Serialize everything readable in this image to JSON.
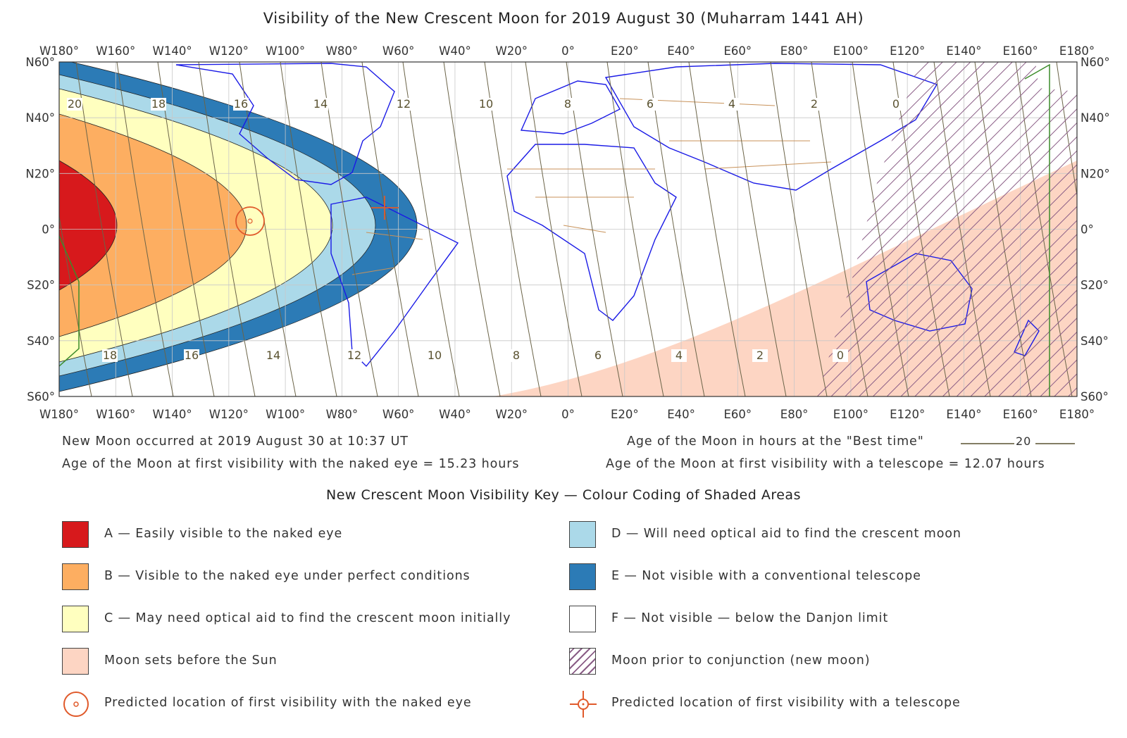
{
  "title": "Visibility of the New Crescent Moon for 2019 August 30 (Muharram 1441 AH)",
  "map": {
    "longitude_labels": [
      "W180°",
      "W160°",
      "W140°",
      "W120°",
      "W100°",
      "W80°",
      "W60°",
      "W40°",
      "W20°",
      "0°",
      "E20°",
      "E40°",
      "E60°",
      "E80°",
      "E100°",
      "E120°",
      "E140°",
      "E160°",
      "E180°"
    ],
    "longitude_values": [
      -180,
      -160,
      -140,
      -120,
      -100,
      -80,
      -60,
      -40,
      -20,
      0,
      20,
      40,
      60,
      80,
      100,
      120,
      140,
      160,
      180
    ],
    "latitude_labels": [
      "N60°",
      "N40°",
      "N20°",
      "0°",
      "S20°",
      "S40°",
      "S60°"
    ],
    "latitude_values": [
      60,
      40,
      20,
      0,
      -20,
      -40,
      -60
    ],
    "lon_range": [
      -180,
      180
    ],
    "lat_range": [
      -60,
      60
    ],
    "grid": true,
    "age_contour_labels_north": [
      "20",
      "18",
      "16",
      "14",
      "12",
      "10",
      "8",
      "6",
      "4",
      "2",
      "0"
    ],
    "age_contour_labels_south": [
      "18",
      "16",
      "14",
      "12",
      "10",
      "8",
      "6",
      "4",
      "2",
      "0"
    ],
    "colors": {
      "zone_a": "#d7191c",
      "zone_b": "#fdae61",
      "zone_c": "#ffffbf",
      "zone_d": "#abd9e9",
      "zone_e": "#2c7bb6",
      "zone_f": "#ffffff",
      "moon_sets_first": "#fdd5c3",
      "prior_conjunction_hatch": "#8a5d86",
      "coastlines": "#1a1ae6",
      "borders": "#c8925a",
      "age_contours": "#6b6448",
      "date_line": "#3c8c2a",
      "markers": "#e05a2b"
    }
  },
  "info": {
    "new_moon": "New Moon occurred at 2019 August 30 at 10:37 UT",
    "naked_eye_age": "Age of the Moon at first visibility with the naked eye = 15.23 hours",
    "best_time_legend": "Age of the Moon in hours at the \"Best time\"",
    "best_time_sample": "20",
    "telescope_age": "Age of the Moon at first visibility with a telescope = 12.07 hours"
  },
  "key": {
    "title": "New Crescent Moon Visibility Key — Colour Coding of Shaded Areas",
    "items": [
      {
        "label": "A — Easily visible to the naked eye",
        "color": "#d7191c"
      },
      {
        "label": "B — Visible to the naked eye under perfect conditions",
        "color": "#fdae61"
      },
      {
        "label": "C — May need optical aid to find the crescent moon initially",
        "color": "#ffffbf"
      },
      {
        "label": "Moon sets before the Sun",
        "color": "#fdd5c3"
      },
      {
        "label": "Predicted location of first visibility with the naked eye",
        "icon": "naked-eye-marker-icon"
      },
      {
        "label": "D — Will need optical aid to find the crescent moon",
        "color": "#abd9e9"
      },
      {
        "label": "E — Not visible with a conventional telescope",
        "color": "#2c7bb6"
      },
      {
        "label": "F — Not visible — below the Danjon limit",
        "color": "#ffffff"
      },
      {
        "label": "Moon prior to conjunction (new moon)",
        "icon": "hatch-icon"
      },
      {
        "label": "Predicted location of first visibility with a telescope",
        "icon": "telescope-marker-icon"
      }
    ]
  }
}
